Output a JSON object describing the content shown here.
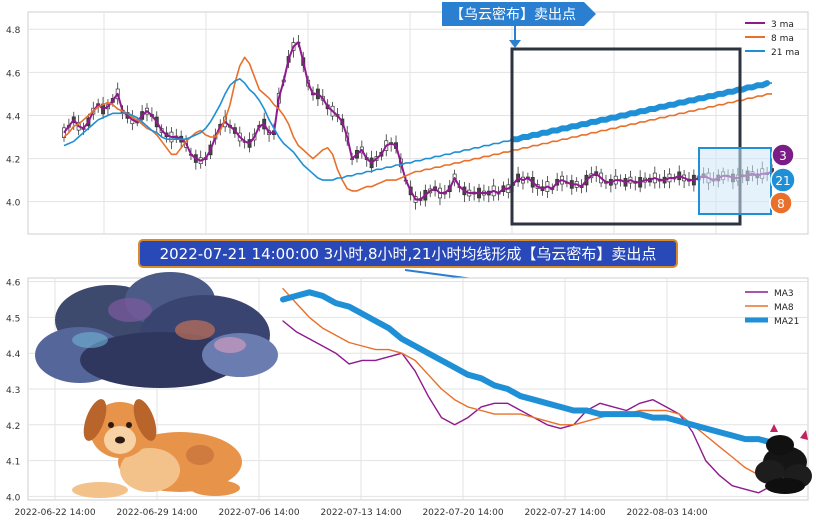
{
  "colors": {
    "ma3": "#8e1a8e",
    "ma8": "#e8702a",
    "ma21": "#1f8fd6",
    "box_dark": "#2c3440",
    "callout_bg": "#2b7fd0",
    "banner_bg": "#2a49b8",
    "banner_border": "#d98a2b",
    "candle": "#333333"
  },
  "callout_top": "【乌云密布】卖出点",
  "banner": "2022-07-21 14:00:00 3小时,8小时,21小时均线形成【乌云密布】卖出点",
  "badges": {
    "b3": "3",
    "b21": "21",
    "b8": "8"
  },
  "chart_data": [
    {
      "type": "line",
      "title": "",
      "ylim": [
        3.85,
        4.88
      ],
      "yticks": [
        "4.8",
        "4.6",
        "4.4",
        "4.2",
        "4.0"
      ],
      "legend": {
        "position": "top-right",
        "entries": [
          "3 ma",
          "8 ma",
          "21 ma"
        ]
      },
      "grid": true,
      "x_index": [
        0,
        5,
        10,
        15,
        20,
        25,
        30,
        35,
        40,
        45,
        50,
        55,
        60,
        65,
        70,
        75,
        80,
        85,
        90,
        95,
        100,
        105,
        110,
        115,
        120,
        125,
        130,
        135,
        140,
        145,
        150,
        155,
        160,
        165,
        170,
        175,
        180,
        185,
        190,
        195,
        200,
        205,
        210,
        215,
        220,
        225,
        230,
        235,
        240,
        245,
        250,
        255,
        260,
        265,
        270,
        275,
        280,
        285,
        290,
        295,
        300,
        305,
        310,
        315,
        320,
        325,
        330,
        335,
        340,
        345,
        350,
        355,
        360,
        365,
        370,
        375,
        380,
        385,
        390,
        395,
        400,
        405,
        410,
        415,
        420,
        425,
        430,
        435,
        440,
        445,
        450,
        455,
        460,
        465,
        470,
        475,
        480,
        485,
        490,
        495,
        500,
        505,
        510,
        515,
        520,
        525,
        530,
        535,
        540,
        545,
        550,
        555,
        560,
        565,
        570,
        575,
        580,
        585,
        590,
        595,
        600,
        605,
        610,
        615,
        620,
        625,
        630,
        635,
        640,
        645,
        650,
        655,
        660,
        665,
        670,
        675,
        680,
        685,
        690,
        695,
        700,
        705,
        710,
        715,
        720,
        725
      ],
      "series": [
        {
          "name": "3 ma",
          "values": [
            4.32,
            4.35,
            4.38,
            4.35,
            4.34,
            4.37,
            4.42,
            4.45,
            4.43,
            4.44,
            4.47,
            4.5,
            4.42,
            4.4,
            4.38,
            4.37,
            4.4,
            4.42,
            4.4,
            4.37,
            4.33,
            4.31,
            4.3,
            4.3,
            4.29,
            4.27,
            4.22,
            4.2,
            4.19,
            4.2,
            4.24,
            4.3,
            4.35,
            4.37,
            4.35,
            4.33,
            4.3,
            4.28,
            4.27,
            4.3,
            4.35,
            4.36,
            4.32,
            4.32,
            4.48,
            4.56,
            4.66,
            4.72,
            4.74,
            4.65,
            4.55,
            4.5,
            4.5,
            4.48,
            4.44,
            4.42,
            4.4,
            4.37,
            4.3,
            4.2,
            4.22,
            4.24,
            4.2,
            4.18,
            4.2,
            4.22,
            4.26,
            4.27,
            4.26,
            4.18,
            4.1,
            4.05,
            4.01,
            4.01,
            4.03,
            4.05,
            4.06,
            4.04,
            4.04,
            4.06,
            4.11,
            4.07,
            4.05,
            4.04,
            4.04,
            4.04,
            4.04,
            4.04,
            4.05,
            4.04,
            4.06,
            4.06,
            4.08,
            4.11,
            4.1,
            4.11,
            4.09,
            4.07,
            4.06,
            4.07,
            4.06,
            4.09,
            4.1,
            4.09,
            4.08,
            4.08,
            4.07,
            4.1,
            4.12,
            4.13,
            4.11,
            4.09,
            4.09,
            4.1,
            4.1,
            4.09,
            4.1,
            4.09,
            4.09,
            4.1,
            4.1,
            4.11,
            4.1,
            4.1,
            4.11,
            4.11,
            4.12,
            4.11,
            4.1,
            4.1,
            4.11,
            4.12,
            4.11,
            4.1,
            4.11,
            4.12,
            4.12,
            4.11,
            4.11,
            4.12,
            4.12,
            4.13,
            4.12,
            4.13,
            4.13,
            4.14
          ]
        },
        {
          "name": "8 ma",
          "values": [
            4.3,
            4.32,
            4.35,
            4.36,
            4.38,
            4.4,
            4.42,
            4.44,
            4.45,
            4.46,
            4.45,
            4.43,
            4.42,
            4.41,
            4.39,
            4.38,
            4.36,
            4.34,
            4.33,
            4.31,
            4.28,
            4.25,
            4.22,
            4.22,
            4.25,
            4.28,
            4.3,
            4.32,
            4.33,
            4.31,
            4.3,
            4.3,
            4.33,
            4.38,
            4.45,
            4.55,
            4.63,
            4.67,
            4.64,
            4.58,
            4.52,
            4.5,
            4.48,
            4.45,
            4.43,
            4.4,
            4.36,
            4.3,
            4.26,
            4.24,
            4.22,
            4.2,
            4.22,
            4.24,
            4.25,
            4.22,
            4.15,
            4.1,
            4.06,
            4.05,
            4.05,
            4.06,
            4.07,
            4.07,
            4.08,
            4.09,
            4.1,
            4.1,
            4.1,
            4.11,
            4.12,
            4.13,
            4.14,
            4.14,
            4.15,
            4.15,
            4.16,
            4.16,
            4.17,
            4.17,
            4.18,
            4.18,
            4.19,
            4.19,
            4.2,
            4.2,
            4.21,
            4.21,
            4.22,
            4.22,
            4.23,
            4.23,
            4.24,
            4.24,
            4.25,
            4.25,
            4.26,
            4.26,
            4.27,
            4.27,
            4.28,
            4.28,
            4.29,
            4.29,
            4.3,
            4.3,
            4.31,
            4.31,
            4.32,
            4.32,
            4.33,
            4.33,
            4.34,
            4.34,
            4.35,
            4.35,
            4.36,
            4.36,
            4.37,
            4.37,
            4.38,
            4.38,
            4.39,
            4.39,
            4.4,
            4.4,
            4.41,
            4.41,
            4.42,
            4.42,
            4.43,
            4.43,
            4.44,
            4.44,
            4.45,
            4.45,
            4.46,
            4.46,
            4.47,
            4.47,
            4.48,
            4.48,
            4.49,
            4.49,
            4.5,
            4.5
          ]
        },
        {
          "name": "21 ma",
          "values": [
            4.26,
            4.27,
            4.28,
            4.3,
            4.32,
            4.34,
            4.36,
            4.38,
            4.39,
            4.4,
            4.41,
            4.41,
            4.41,
            4.41,
            4.4,
            4.39,
            4.37,
            4.35,
            4.33,
            4.32,
            4.3,
            4.29,
            4.29,
            4.29,
            4.29,
            4.29,
            4.3,
            4.31,
            4.32,
            4.34,
            4.37,
            4.41,
            4.45,
            4.5,
            4.54,
            4.56,
            4.57,
            4.55,
            4.52,
            4.5,
            4.47,
            4.43,
            4.38,
            4.34,
            4.3,
            4.27,
            4.25,
            4.23,
            4.2,
            4.17,
            4.15,
            4.13,
            4.11,
            4.1,
            4.1,
            4.1,
            4.11,
            4.11,
            4.12,
            4.12,
            4.13,
            4.13,
            4.14,
            4.14,
            4.15,
            4.15,
            4.16,
            4.16,
            4.17,
            4.17,
            4.18,
            4.18,
            4.19,
            4.19,
            4.2,
            4.2,
            4.21,
            4.21,
            4.22,
            4.22,
            4.23,
            4.23,
            4.24,
            4.24,
            4.25,
            4.25,
            4.26,
            4.26,
            4.27,
            4.27,
            4.28,
            4.28,
            4.29,
            4.29,
            4.3,
            4.3,
            4.31,
            4.31,
            4.32,
            4.32,
            4.33,
            4.33,
            4.34,
            4.34,
            4.35,
            4.35,
            4.36,
            4.36,
            4.37,
            4.37,
            4.38,
            4.38,
            4.39,
            4.39,
            4.4,
            4.4,
            4.41,
            4.41,
            4.42,
            4.42,
            4.43,
            4.43,
            4.44,
            4.44,
            4.45,
            4.45,
            4.46,
            4.46,
            4.47,
            4.47,
            4.48,
            4.48,
            4.49,
            4.49,
            4.5,
            4.5,
            4.51,
            4.51,
            4.52,
            4.52,
            4.53,
            4.53,
            4.54,
            4.54,
            4.55,
            4.55
          ]
        }
      ]
    },
    {
      "type": "line",
      "title": "",
      "ylim": [
        3.99,
        4.61
      ],
      "yticks": [
        "4.6",
        "4.5",
        "4.4",
        "4.3",
        "4.2",
        "4.1",
        "4.0"
      ],
      "xticks": [
        "2022-06-22 14:00",
        "2022-06-29 14:00",
        "2022-07-06 14:00",
        "2022-07-13 14:00",
        "2022-07-20 14:00",
        "2022-07-27 14:00",
        "2022-08-03 14:00"
      ],
      "legend": {
        "position": "top-right",
        "entries": [
          "MA3",
          "MA8",
          "MA21"
        ]
      },
      "grid": true,
      "series": [
        {
          "name": "MA3",
          "values": [
            4.49,
            4.46,
            4.44,
            4.42,
            4.4,
            4.37,
            4.38,
            4.38,
            4.39,
            4.4,
            4.35,
            4.28,
            4.22,
            4.2,
            4.22,
            4.25,
            4.26,
            4.26,
            4.24,
            4.22,
            4.2,
            4.19,
            4.2,
            4.24,
            4.26,
            4.25,
            4.24,
            4.26,
            4.27,
            4.25,
            4.23,
            4.18,
            4.1,
            4.06,
            4.03,
            4.02,
            4.01,
            4.03,
            4.07
          ]
        },
        {
          "name": "MA8",
          "values": [
            4.58,
            4.54,
            4.5,
            4.47,
            4.45,
            4.43,
            4.42,
            4.41,
            4.41,
            4.4,
            4.38,
            4.34,
            4.3,
            4.27,
            4.25,
            4.24,
            4.23,
            4.23,
            4.23,
            4.22,
            4.21,
            4.2,
            4.2,
            4.21,
            4.22,
            4.23,
            4.23,
            4.24,
            4.24,
            4.24,
            4.23,
            4.2,
            4.17,
            4.14,
            4.11,
            4.08,
            4.06,
            4.05,
            4.06
          ]
        },
        {
          "name": "MA21",
          "values": [
            4.55,
            4.56,
            4.57,
            4.56,
            4.54,
            4.53,
            4.51,
            4.49,
            4.47,
            4.44,
            4.42,
            4.4,
            4.38,
            4.36,
            4.34,
            4.33,
            4.31,
            4.3,
            4.28,
            4.27,
            4.26,
            4.25,
            4.24,
            4.24,
            4.23,
            4.23,
            4.23,
            4.23,
            4.22,
            4.22,
            4.21,
            4.2,
            4.19,
            4.18,
            4.17,
            4.16,
            4.16,
            4.15,
            4.15
          ]
        }
      ]
    }
  ]
}
